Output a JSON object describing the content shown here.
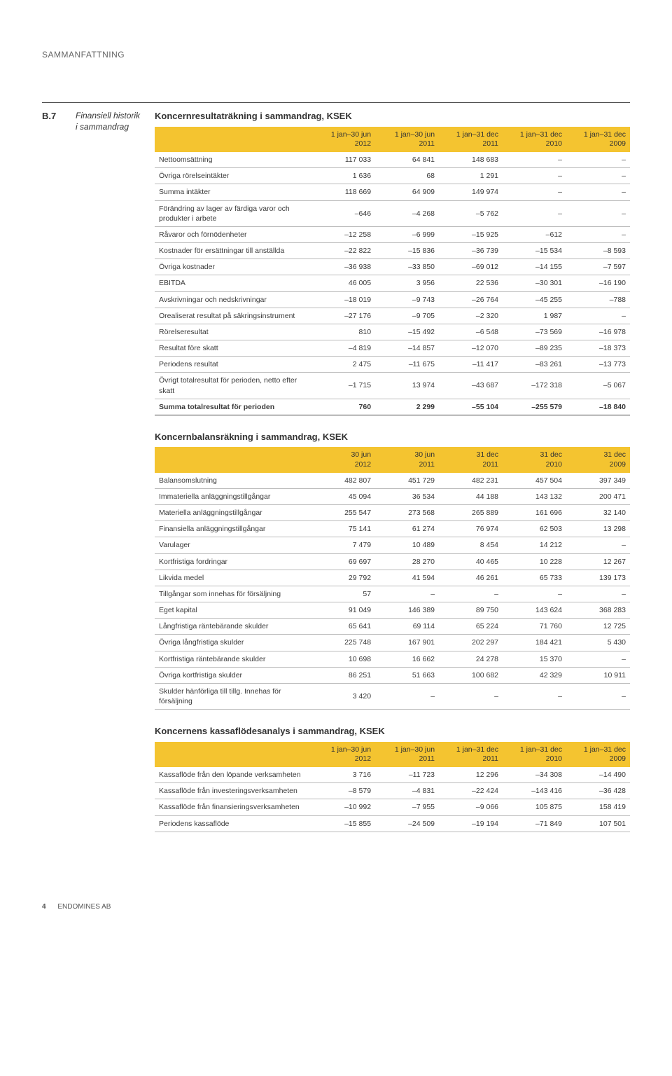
{
  "page_header": "SAMMANFATTNING",
  "section_code": "B.7",
  "section_label": "Finansiell historik i sammandrag",
  "footer_page": "4",
  "footer_company": "ENDOMINES AB",
  "colors": {
    "header_bg": "#f4c430",
    "row_border": "#bbbbbb",
    "text": "#3a3a3a"
  },
  "col_widths": {
    "label_pct": 33,
    "val_pct": 13.4
  },
  "tables": [
    {
      "title": "Koncernresultaträkning i sammandrag, KSEK",
      "columns": [
        "",
        "1 jan–30 jun\n2012",
        "1 jan–30 jun\n2011",
        "1 jan–31 dec\n2011",
        "1 jan–31 dec\n2010",
        "1 jan–31 dec\n2009"
      ],
      "rows": [
        {
          "label": "Nettoomsättning",
          "v": [
            "117 033",
            "64 841",
            "148 683",
            "–",
            "–"
          ]
        },
        {
          "label": "Övriga rörelseintäkter",
          "v": [
            "1 636",
            "68",
            "1 291",
            "–",
            "–"
          ]
        },
        {
          "label": "Summa intäkter",
          "v": [
            "118 669",
            "64 909",
            "149 974",
            "–",
            "–"
          ]
        },
        {
          "label": "Förändring av lager av färdiga varor och produkter i arbete",
          "v": [
            "–646",
            "–4 268",
            "–5 762",
            "–",
            "–"
          ]
        },
        {
          "label": "Råvaror och förnödenheter",
          "v": [
            "–12 258",
            "–6 999",
            "–15 925",
            "–612",
            "–"
          ]
        },
        {
          "label": "Kostnader för ersättningar till anställda",
          "v": [
            "–22 822",
            "–15 836",
            "–36 739",
            "–15 534",
            "–8 593"
          ]
        },
        {
          "label": "Övriga kostnader",
          "v": [
            "–36 938",
            "–33 850",
            "–69 012",
            "–14 155",
            "–7 597"
          ]
        },
        {
          "label": "EBITDA",
          "v": [
            "46 005",
            "3 956",
            "22 536",
            "–30 301",
            "–16 190"
          ]
        },
        {
          "label": "Avskrivningar och nedskrivningar",
          "v": [
            "–18 019",
            "–9 743",
            "–26 764",
            "–45 255",
            "–788"
          ]
        },
        {
          "label": "Orealiserat resultat på säkringsinstrument",
          "v": [
            "–27 176",
            "–9 705",
            "–2 320",
            "1 987",
            "–"
          ]
        },
        {
          "label": "Rörelseresultat",
          "v": [
            "810",
            "–15 492",
            "–6 548",
            "–73 569",
            "–16 978"
          ]
        },
        {
          "label": "Resultat före skatt",
          "v": [
            "–4 819",
            "–14 857",
            "–12 070",
            "–89 235",
            "–18 373"
          ]
        },
        {
          "label": "Periodens resultat",
          "v": [
            "2 475",
            "–11 675",
            "–11 417",
            "–83 261",
            "–13 773"
          ]
        },
        {
          "label": "Övrigt totalresultat för perioden, netto efter skatt",
          "v": [
            "–1 715",
            "13 974",
            "–43 687",
            "–172 318",
            "–5 067"
          ]
        },
        {
          "label": "Summa totalresultat för perioden",
          "v": [
            "760",
            "2 299",
            "–55 104",
            "–255 579",
            "–18 840"
          ],
          "total": true
        }
      ]
    },
    {
      "title": "Koncernbalansräkning i sammandrag, KSEK",
      "columns": [
        "",
        "30 jun\n2012",
        "30 jun\n2011",
        "31 dec\n2011",
        "31 dec\n2010",
        "31 dec\n2009"
      ],
      "rows": [
        {
          "label": "Balansomslutning",
          "v": [
            "482 807",
            "451 729",
            "482 231",
            "457 504",
            "397 349"
          ]
        },
        {
          "label": "Immateriella anläggningstillgångar",
          "v": [
            "45 094",
            "36 534",
            "44 188",
            "143 132",
            "200 471"
          ]
        },
        {
          "label": "Materiella anläggningstillgångar",
          "v": [
            "255 547",
            "273 568",
            "265 889",
            "161 696",
            "32 140"
          ]
        },
        {
          "label": "Finansiella anläggningstillgångar",
          "v": [
            "75 141",
            "61 274",
            "76 974",
            "62 503",
            "13 298"
          ]
        },
        {
          "label": "Varulager",
          "v": [
            "7 479",
            "10 489",
            "8 454",
            "14 212",
            "–"
          ]
        },
        {
          "label": "Kortfristiga fordringar",
          "v": [
            "69 697",
            "28 270",
            "40 465",
            "10 228",
            "12 267"
          ]
        },
        {
          "label": "Likvida medel",
          "v": [
            "29 792",
            "41 594",
            "46 261",
            "65 733",
            "139 173"
          ]
        },
        {
          "label": "Tillgångar som innehas för försäljning",
          "v": [
            "57",
            "–",
            "–",
            "–",
            "–"
          ]
        },
        {
          "label": "Eget kapital",
          "v": [
            "91 049",
            "146 389",
            "89 750",
            "143 624",
            "368 283"
          ]
        },
        {
          "label": "Långfristiga räntebärande skulder",
          "v": [
            "65 641",
            "69 114",
            "65 224",
            "71 760",
            "12 725"
          ]
        },
        {
          "label": "Övriga långfristiga skulder",
          "v": [
            "225 748",
            "167 901",
            "202 297",
            "184 421",
            "5 430"
          ]
        },
        {
          "label": "Kortfristiga räntebärande skulder",
          "v": [
            "10 698",
            "16 662",
            "24 278",
            "15 370",
            "–"
          ]
        },
        {
          "label": "Övriga kortfristiga skulder",
          "v": [
            "86 251",
            "51 663",
            "100 682",
            "42 329",
            "10 911"
          ]
        },
        {
          "label": "Skulder hänförliga till tillg. Innehas för försäljning",
          "v": [
            "3 420",
            "–",
            "–",
            "–",
            "–"
          ]
        }
      ]
    },
    {
      "title": "Koncernens kassaflödesanalys i sammandrag, KSEK",
      "columns": [
        "",
        "1 jan–30 jun\n2012",
        "1 jan–30 jun\n2011",
        "1 jan–31 dec\n2011",
        "1 jan–31 dec\n2010",
        "1 jan–31 dec\n2009"
      ],
      "rows": [
        {
          "label": "Kassaflöde från den löpande verksamheten",
          "v": [
            "3 716",
            "–11 723",
            "12 296",
            "–34 308",
            "–14 490"
          ]
        },
        {
          "label": "Kassaflöde från investerings­verksamheten",
          "v": [
            "–8 579",
            "–4 831",
            "–22 424",
            "–143 416",
            "–36 428"
          ]
        },
        {
          "label": "Kassaflöde från finansierings­verksamheten",
          "v": [
            "–10 992",
            "–7 955",
            "–9 066",
            "105 875",
            "158 419"
          ]
        },
        {
          "label": "Periodens kassaflöde",
          "v": [
            "–15 855",
            "–24 509",
            "–19 194",
            "–71 849",
            "107 501"
          ]
        }
      ]
    }
  ]
}
